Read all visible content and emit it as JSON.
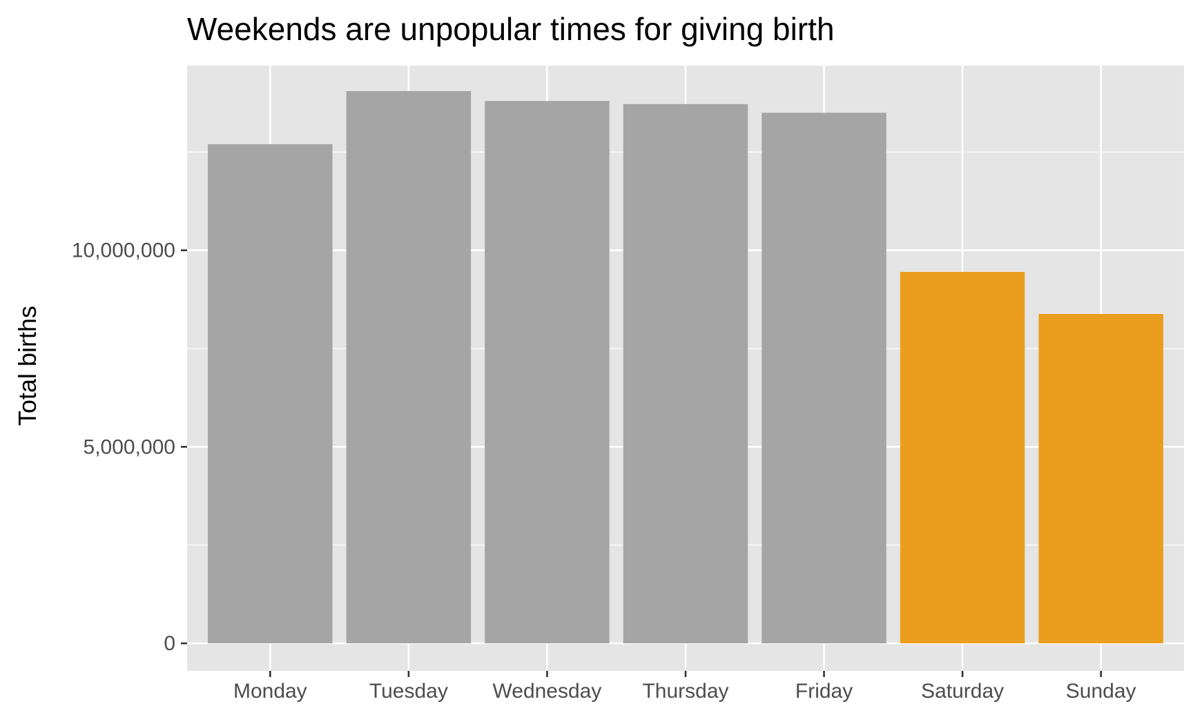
{
  "chart_data": {
    "type": "bar",
    "title": "Weekends are unpopular times for giving birth",
    "xlabel": "",
    "ylabel": "Total births",
    "categories": [
      "Monday",
      "Tuesday",
      "Wednesday",
      "Thursday",
      "Friday",
      "Saturday",
      "Sunday"
    ],
    "values": [
      12700000,
      14050000,
      13800000,
      13720000,
      13500000,
      9450000,
      8380000
    ],
    "weekend": [
      false,
      false,
      false,
      false,
      false,
      true,
      true
    ],
    "ylim": [
      -700000,
      14700000
    ],
    "yticks": [
      0,
      5000000,
      10000000
    ],
    "ytick_labels": [
      "0",
      "5,000,000",
      "10,000,000"
    ],
    "grid": true,
    "legend": "none",
    "colors": {
      "panel_background": "#e5e5e5",
      "grid": "#ffffff",
      "weekday_bar": "#a5a5a5",
      "weekend_bar": "#eb9e1e",
      "tick": "#333333",
      "tick_label": "#4d4d4d",
      "text": "#000000"
    }
  }
}
